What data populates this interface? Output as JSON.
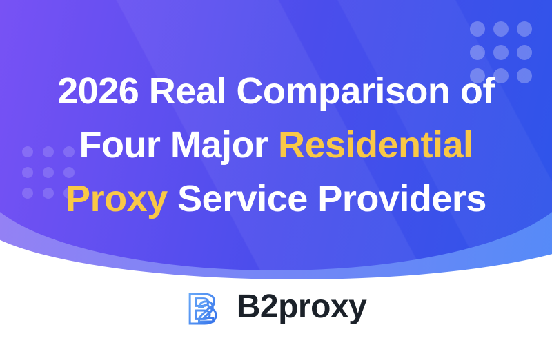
{
  "banner": {
    "title": {
      "line1": "2026 Real Comparison of",
      "line2_white": "Four Major ",
      "line2_accent": "Residential",
      "line3_accent": "Proxy",
      "line3_white": " Service Providers"
    },
    "decor": {
      "dot_grid_top_right": "3x3 light dots",
      "dot_grid_left": "3x3 light dots",
      "streaks": "diagonal light bands"
    }
  },
  "logo": {
    "text": "B2proxy",
    "icon": "b2proxy-monogram-icon",
    "icon_letter_b": "B",
    "icon_letter_2": "2"
  },
  "colors": {
    "gradient_left": "#7B52F5",
    "gradient_mid": "#4B4DEC",
    "gradient_right": "#2B55E9",
    "back_curve_left": "#9B80F4",
    "back_curve_right": "#4E8CF8",
    "accent_yellow": "#F9C846",
    "title_white": "#FFFFFF",
    "logo_blue_light": "#6FB0FA",
    "logo_blue_dark": "#2E6BE8",
    "logo_text": "#1B2129",
    "page_background": "#FFFFFF"
  }
}
